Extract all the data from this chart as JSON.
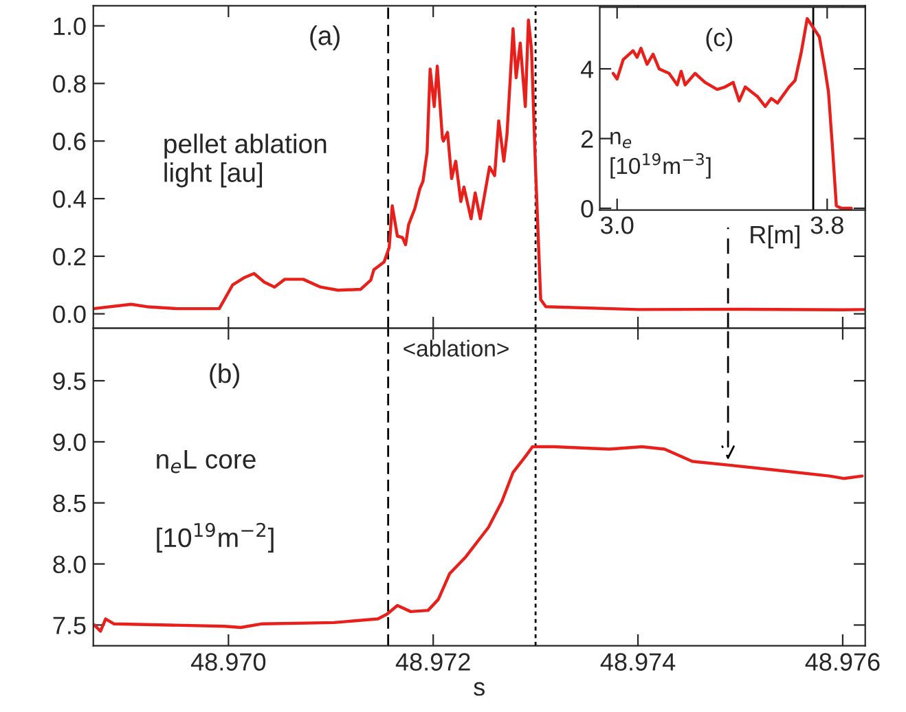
{
  "chart_data": [
    {
      "type": "line",
      "tick_labels": "y",
      "xlim": [
        48.96868,
        48.97622
      ],
      "ylim": [
        -0.05,
        1.07
      ],
      "xticks": [
        {
          "value": 48.97,
          "label": null
        },
        {
          "value": 48.972,
          "label": null
        },
        {
          "value": 48.974,
          "label": null
        },
        {
          "value": 48.976,
          "label": null
        }
      ],
      "yticks": [
        {
          "value": 0,
          "label": "0.0"
        },
        {
          "value": 0.2,
          "label": "0.2"
        },
        {
          "value": 0.4,
          "label": "0.4"
        },
        {
          "value": 0.6,
          "label": "0.6"
        },
        {
          "value": 0.8,
          "label": "0.8"
        },
        {
          "value": 1.0,
          "label": "1.0"
        }
      ],
      "annotations": [
        "(a)",
        "pellet ablation\nlight [au]"
      ],
      "ref_lines": [
        {
          "axis": "x",
          "value": 48.97156,
          "color": "#000000",
          "line_style": "dashed"
        },
        {
          "axis": "x",
          "value": 48.973,
          "color": "#000000",
          "line_style": "dotted"
        }
      ],
      "marker": "none",
      "line_style": "solid",
      "series": [
        {
          "color": "#e8201c",
          "x": [
            48.96868,
            48.96905,
            48.96922,
            48.9695,
            48.96991,
            48.97004,
            48.97015,
            48.97025,
            48.97035,
            48.97045,
            48.97055,
            48.97073,
            48.9709,
            48.97107,
            48.97129,
            48.97139,
            48.97142,
            48.97152,
            48.97157,
            48.9716,
            48.97165,
            48.9717,
            48.97173,
            48.97176,
            48.97182,
            48.97187,
            48.9719,
            48.97194,
            48.97197,
            48.97201,
            48.97204,
            48.97209,
            48.9721,
            48.97214,
            48.97218,
            48.97222,
            48.97227,
            48.9723,
            48.97237,
            48.97241,
            48.97246,
            48.97252,
            48.97255,
            48.9726,
            48.97264,
            48.97269,
            48.97272,
            48.97275,
            48.97278,
            48.97281,
            48.97285,
            48.9729,
            48.97293,
            48.97296,
            48.973,
            48.97305,
            48.9731,
            48.974,
            48.975,
            48.976,
            48.97622
          ],
          "values": [
            0.018,
            0.033,
            0.024,
            0.018,
            0.018,
            0.1,
            0.125,
            0.14,
            0.11,
            0.093,
            0.12,
            0.12,
            0.093,
            0.082,
            0.085,
            0.117,
            0.153,
            0.18,
            0.23,
            0.375,
            0.27,
            0.265,
            0.24,
            0.31,
            0.365,
            0.435,
            0.46,
            0.56,
            0.85,
            0.72,
            0.86,
            0.61,
            0.6,
            0.63,
            0.47,
            0.53,
            0.39,
            0.44,
            0.33,
            0.42,
            0.33,
            0.45,
            0.51,
            0.48,
            0.67,
            0.53,
            0.62,
            0.8,
            0.99,
            0.82,
            0.94,
            0.72,
            1.02,
            0.92,
            0.5,
            0.05,
            0.025,
            0.015,
            0.016,
            0.014,
            0.015
          ]
        }
      ]
    },
    {
      "type": "line",
      "xlabel": "s",
      "xlim": [
        48.96868,
        48.97622
      ],
      "ylim": [
        7.33,
        9.93
      ],
      "xticks": [
        {
          "value": 48.97,
          "label": "48.970"
        },
        {
          "value": 48.972,
          "label": "48.972"
        },
        {
          "value": 48.974,
          "label": "48.974"
        },
        {
          "value": 48.976,
          "label": "48.976"
        }
      ],
      "yticks": [
        {
          "value": 7.5,
          "label": "7.5"
        },
        {
          "value": 8.0,
          "label": "8.0"
        },
        {
          "value": 8.5,
          "label": "8.5"
        },
        {
          "value": 9.0,
          "label": "9.0"
        },
        {
          "value": 9.5,
          "label": "9.5"
        }
      ],
      "annotations": [
        "(b)",
        "<ablation>",
        "n$_{e}$L core",
        "[10$^{19}$m$^{−2}$]"
      ],
      "ref_lines": [
        {
          "axis": "x",
          "value": 48.97156,
          "color": "#000000",
          "line_style": "dashed"
        },
        {
          "axis": "x",
          "value": 48.973,
          "color": "#000000",
          "line_style": "dotted"
        }
      ],
      "marker": "none",
      "line_style": "solid",
      "series": [
        {
          "color": "#e8201c",
          "x": [
            48.96869,
            48.96875,
            48.9688,
            48.96888,
            48.96942,
            48.96996,
            48.97012,
            48.97033,
            48.97103,
            48.97146,
            48.97155,
            48.97165,
            48.97178,
            48.97195,
            48.97205,
            48.97216,
            48.97232,
            48.97254,
            48.97267,
            48.97278,
            48.97291,
            48.97297,
            48.97318,
            48.97372,
            48.97404,
            48.97426,
            48.97453,
            48.97488,
            48.97533,
            48.97587,
            48.97601,
            48.97619
          ],
          "values": [
            7.5,
            7.45,
            7.55,
            7.51,
            7.5,
            7.49,
            7.48,
            7.51,
            7.52,
            7.55,
            7.59,
            7.66,
            7.61,
            7.62,
            7.71,
            7.92,
            8.06,
            8.3,
            8.51,
            8.75,
            8.89,
            8.96,
            8.96,
            8.94,
            8.96,
            8.94,
            8.84,
            8.81,
            8.77,
            8.72,
            8.7,
            8.72
          ]
        }
      ]
    },
    {
      "type": "line",
      "xlabel": "R[m]",
      "xlim": [
        2.934,
        3.945
      ],
      "ylim": [
        -0.05,
        5.77
      ],
      "xticks": [
        {
          "value": 3.0,
          "label": "3.0"
        },
        {
          "value": 3.8,
          "label": "3.8"
        }
      ],
      "yticks": [
        0,
        2,
        4
      ],
      "annotations": [
        "(c)",
        "n$_{e}$\n[10$^{19}$m$^{−3}$]"
      ],
      "ref_lines": [
        {
          "axis": "x",
          "value": 3.747,
          "color": "#000000",
          "line_style": "solid"
        }
      ],
      "marker": "none",
      "line_style": "solid",
      "series": [
        {
          "color": "#e8201c",
          "x": [
            2.985,
            3.0,
            3.023,
            3.046,
            3.061,
            3.076,
            3.091,
            3.114,
            3.137,
            3.16,
            3.198,
            3.229,
            3.244,
            3.259,
            3.297,
            3.335,
            3.381,
            3.411,
            3.442,
            3.465,
            3.488,
            3.534,
            3.564,
            3.587,
            3.611,
            3.655,
            3.678,
            3.701,
            3.724,
            3.747,
            3.77,
            3.79,
            3.805,
            3.82,
            3.835,
            3.854,
            3.892
          ],
          "values": [
            3.87,
            3.71,
            4.26,
            4.42,
            4.52,
            4.33,
            4.59,
            4.13,
            4.42,
            4.0,
            3.87,
            3.54,
            3.93,
            3.54,
            3.87,
            3.61,
            3.41,
            3.48,
            3.61,
            3.08,
            3.48,
            3.21,
            2.92,
            3.15,
            3.02,
            3.48,
            3.67,
            4.46,
            5.44,
            5.18,
            4.92,
            4.07,
            3.34,
            1.77,
            0.07,
            0.0,
            0.0
          ]
        }
      ]
    }
  ]
}
